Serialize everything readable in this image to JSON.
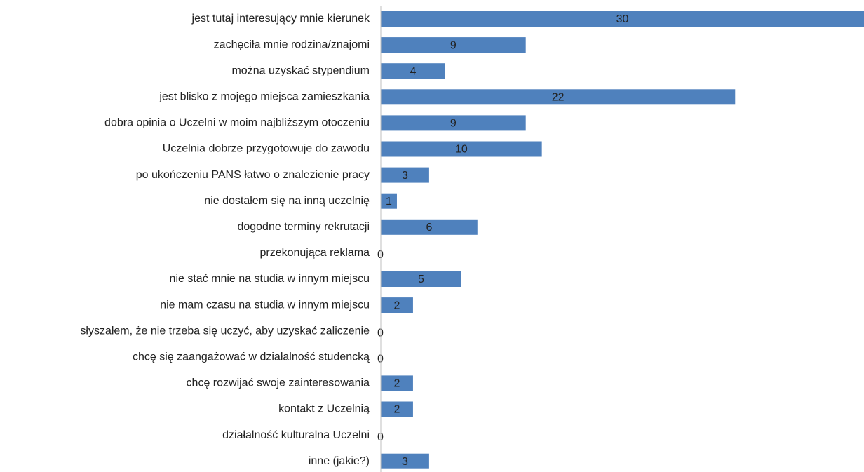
{
  "chart_data": {
    "type": "bar",
    "orientation": "horizontal",
    "categories": [
      "jest tutaj interesujący mnie kierunek",
      "zachęciła mnie rodzina/znajomi",
      "można uzyskać stypendium",
      "jest blisko z mojego miejsca zamieszkania",
      "dobra opinia o Uczelni w moim najbliższym otoczeniu",
      "Uczelnia dobrze przygotowuje do zawodu",
      "po ukończeniu PANS łatwo o znalezienie pracy",
      "nie dostałem się na inną uczelnię",
      "dogodne terminy rekrutacji",
      "przekonująca reklama",
      "nie stać mnie na studia w innym miejscu",
      "nie mam czasu na studia w innym miejscu",
      "słyszałem, że nie trzeba się uczyć, aby uzyskać zaliczenie",
      "chcę się zaangażować w działalność studencką",
      "chcę rozwijać swoje zainteresowania",
      "kontakt z Uczelnią",
      "działalność kulturalna Uczelni",
      "inne (jakie?)"
    ],
    "values": [
      30,
      9,
      4,
      22,
      9,
      10,
      3,
      1,
      6,
      0,
      5,
      2,
      0,
      0,
      2,
      2,
      0,
      3
    ],
    "color": "#4f81bd",
    "xlim": [
      0,
      30
    ]
  }
}
